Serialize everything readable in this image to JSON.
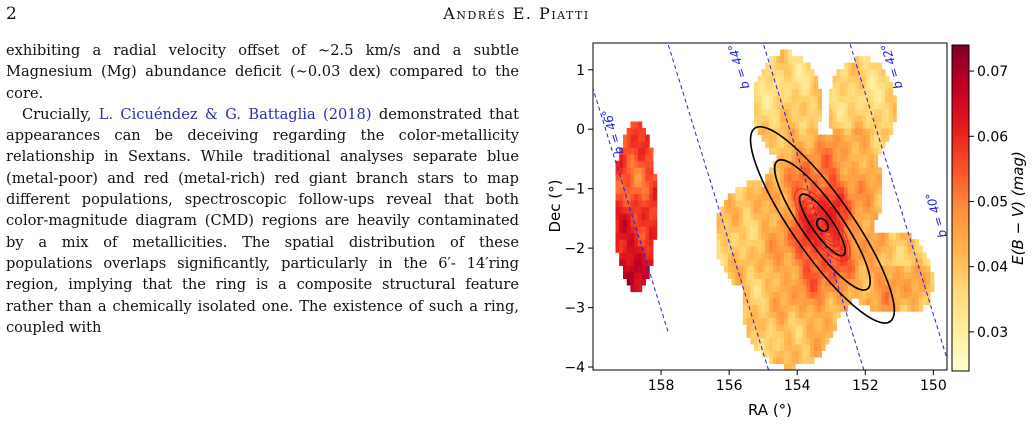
{
  "header": {
    "page_number": "2",
    "running_head": "Andrés E. Piatti"
  },
  "body": {
    "para1": "exhibiting a radial velocity offset of ∼2.5 km/s and a subtle Magnesium (Mg) abundance deficit (∼0.03 dex) compared to the core.",
    "para2_citation": "L. Cicuéndez & G. Battaglia (2018)",
    "para2_rest": " demonstrated that appearances can be deceiving regarding the color-metallicity relationship in Sextans. While traditional analyses separate blue (metal-poor) and red (metal-rich) red giant branch stars to map different populations, spectroscopic follow-ups reveal that both color-magnitude diagram (CMD) regions are heavily contaminated by a mix of metallicities. The spatial distribution of these populations overlaps significantly, particularly in the 6′- 14′ring region, implying that the ring is a composite structural feature rather than a chemically isolated one. The existence of such a ring, coupled with",
    "para2_lead": "Crucially, "
  },
  "chart_data": {
    "type": "heatmap",
    "xlabel": "RA (°)",
    "ylabel": "Dec (°)",
    "xlim": [
      160,
      149.6
    ],
    "ylim": [
      -4.05,
      1.45
    ],
    "x_ticks": [
      158,
      156,
      154,
      152,
      150
    ],
    "y_ticks": [
      1,
      0,
      -1,
      -2,
      -3,
      -4
    ],
    "x_tick_labels": [
      "158",
      "156",
      "154",
      "152",
      "150"
    ],
    "y_tick_labels": [
      "1",
      "0",
      "−1",
      "−2",
      "−3",
      "−4"
    ],
    "colorbar": {
      "label": "E(B − V) (mag)",
      "range": [
        0.024,
        0.074
      ],
      "ticks": [
        0.03,
        0.04,
        0.05,
        0.06,
        0.07
      ],
      "tick_labels": [
        "0.03",
        "0.04",
        "0.05",
        "0.06",
        "0.07"
      ],
      "colormap": "YlOrRd",
      "colors": [
        "#ffffcc",
        "#ffeda0",
        "#fed976",
        "#feb24c",
        "#fd8d3c",
        "#fc4e2a",
        "#e31a1c",
        "#bd0026",
        "#800026"
      ]
    },
    "latitude_lines": {
      "labels": [
        "b = 46°",
        "b = 44°",
        "b = 42°",
        "b = 40°"
      ],
      "color": "#2020dd",
      "style": "dashed"
    },
    "center": {
      "ra": 153.26,
      "dec": -1.61
    },
    "black_ellipse_semi_axes_deg": [
      [
        0.4,
        0.3
      ],
      [
        0.85,
        0.58
      ],
      [
        1.28,
        0.87
      ]
    ],
    "red_ellipse_semi_axes_deg": [
      0.14,
      0.24,
      0.33,
      0.43,
      0.52,
      0.62,
      0.72
    ],
    "ellipse_angle_deg": -35
  }
}
